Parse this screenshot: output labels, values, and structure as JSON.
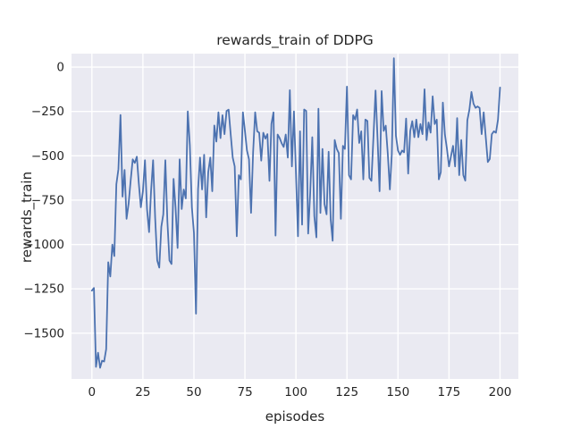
{
  "figure": {
    "title": "rewards_train of DDPG",
    "xlabel": "episodes",
    "ylabel": "rewards_train"
  },
  "chart_data": {
    "type": "line",
    "title": "rewards_train of DDPG",
    "xlabel": "episodes",
    "ylabel": "rewards_train",
    "x_ticks": [
      0,
      25,
      50,
      75,
      100,
      125,
      150,
      175,
      200
    ],
    "y_ticks": [
      0,
      -250,
      -500,
      -750,
      -1000,
      -1250,
      -1500
    ],
    "xlim": [
      -10,
      209
    ],
    "ylim": [
      -1758,
      76
    ],
    "grid": true,
    "legend": false,
    "style": "seaborn-darkgrid",
    "colors": {
      "line": "#4c72b0",
      "axes_background": "#eaeaf2",
      "grid": "#ffffff",
      "text": "#262626",
      "figure_background": "#ffffff"
    },
    "series": [
      {
        "name": "rewards_train",
        "x_start": 0,
        "x_step": 1,
        "values": [
          -1260,
          -1245,
          -1690,
          -1610,
          -1695,
          -1655,
          -1660,
          -1590,
          -1100,
          -1180,
          -1000,
          -1065,
          -660,
          -575,
          -270,
          -730,
          -580,
          -855,
          -770,
          -640,
          -520,
          -540,
          -505,
          -655,
          -790,
          -700,
          -525,
          -800,
          -930,
          -700,
          -525,
          -850,
          -1090,
          -1130,
          -900,
          -830,
          -525,
          -870,
          -1090,
          -1110,
          -630,
          -790,
          -1020,
          -520,
          -800,
          -690,
          -740,
          -250,
          -440,
          -790,
          -935,
          -1390,
          -690,
          -510,
          -690,
          -494,
          -847,
          -592,
          -510,
          -700,
          -329,
          -420,
          -255,
          -400,
          -271,
          -378,
          -247,
          -240,
          -378,
          -510,
          -560,
          -954,
          -609,
          -633,
          -255,
          -362,
          -469,
          -520,
          -822,
          -480,
          -255,
          -362,
          -370,
          -527,
          -370,
          -403,
          -378,
          -641,
          -320,
          -255,
          -950,
          -380,
          -400,
          -430,
          -450,
          -380,
          -510,
          -130,
          -560,
          -250,
          -590,
          -954,
          -362,
          -888,
          -239,
          -247,
          -938,
          -707,
          -395,
          -840,
          -960,
          -235,
          -822,
          -461,
          -773,
          -830,
          -477,
          -859,
          -979,
          -411,
          -461,
          -485,
          -855,
          -444,
          -461,
          -110,
          -609,
          -633,
          -271,
          -296,
          -239,
          -428,
          -362,
          -633,
          -296,
          -304,
          -625,
          -641,
          -387,
          -132,
          -411,
          -700,
          -135,
          -360,
          -330,
          -490,
          -690,
          -490,
          50,
          -387,
          -470,
          -495,
          -470,
          -480,
          -290,
          -600,
          -360,
          -305,
          -395,
          -296,
          -395,
          -321,
          -378,
          -125,
          -411,
          -312,
          -370,
          -165,
          -321,
          -296,
          -633,
          -592,
          -200,
          -380,
          -461,
          -560,
          -500,
          -444,
          -560,
          -288,
          -609,
          -411,
          -609,
          -640,
          -300,
          -240,
          -140,
          -206,
          -230,
          -222,
          -230,
          -378,
          -255,
          -395,
          -535,
          -518,
          -378,
          -362,
          -370,
          -296,
          -115
        ]
      }
    ]
  }
}
